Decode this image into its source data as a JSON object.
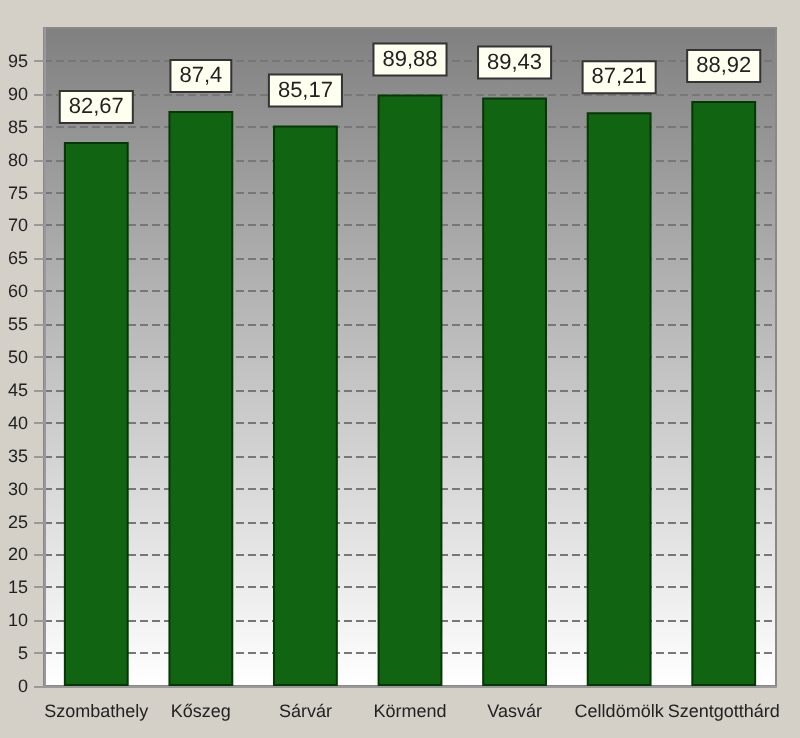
{
  "chart_data": {
    "type": "bar",
    "categories": [
      "Szombathely",
      "Kőszeg",
      "Sárvár",
      "Körmend",
      "Vasvár",
      "Celldömölk",
      "Szentgotthárd"
    ],
    "values": [
      82.67,
      87.4,
      85.17,
      89.88,
      89.43,
      87.21,
      88.92
    ],
    "value_labels": [
      "82,67",
      "87,4",
      "85,17",
      "89,88",
      "89,43",
      "87,21",
      "88,92"
    ],
    "color": "#116411",
    "ylim": [
      0,
      100
    ],
    "yticks": [
      0,
      5,
      10,
      15,
      20,
      25,
      30,
      35,
      40,
      45,
      50,
      55,
      60,
      65,
      70,
      75,
      80,
      85,
      90,
      95
    ],
    "grid": "y"
  }
}
